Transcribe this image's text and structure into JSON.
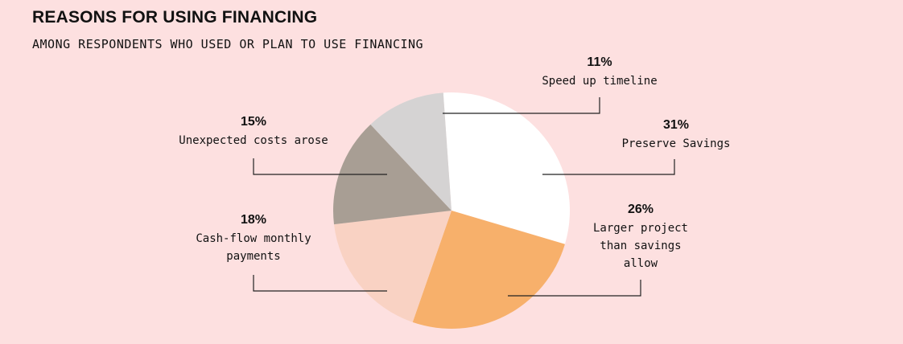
{
  "chart_data": {
    "type": "pie",
    "title": "REASONS FOR USING FINANCING",
    "subtitle": "AMONG RESPONDENTS WHO USED OR PLAN TO USE FINANCING",
    "slices": [
      {
        "pct_label": "31%",
        "label": "Preserve Savings",
        "value": 31,
        "color": "#ffffff"
      },
      {
        "pct_label": "26%",
        "label": "Larger project than savings allow",
        "value": 26,
        "color": "#f7b06b"
      },
      {
        "pct_label": "18%",
        "label": "Cash-flow monthly payments",
        "value": 18,
        "color": "#f9d2c3"
      },
      {
        "pct_label": "15%",
        "label": "Unexpected costs arose",
        "value": 15,
        "color": "#a89e94"
      },
      {
        "pct_label": "11%",
        "label": "Speed up timeline",
        "value": 11,
        "color": "#d5d3d3"
      }
    ]
  }
}
